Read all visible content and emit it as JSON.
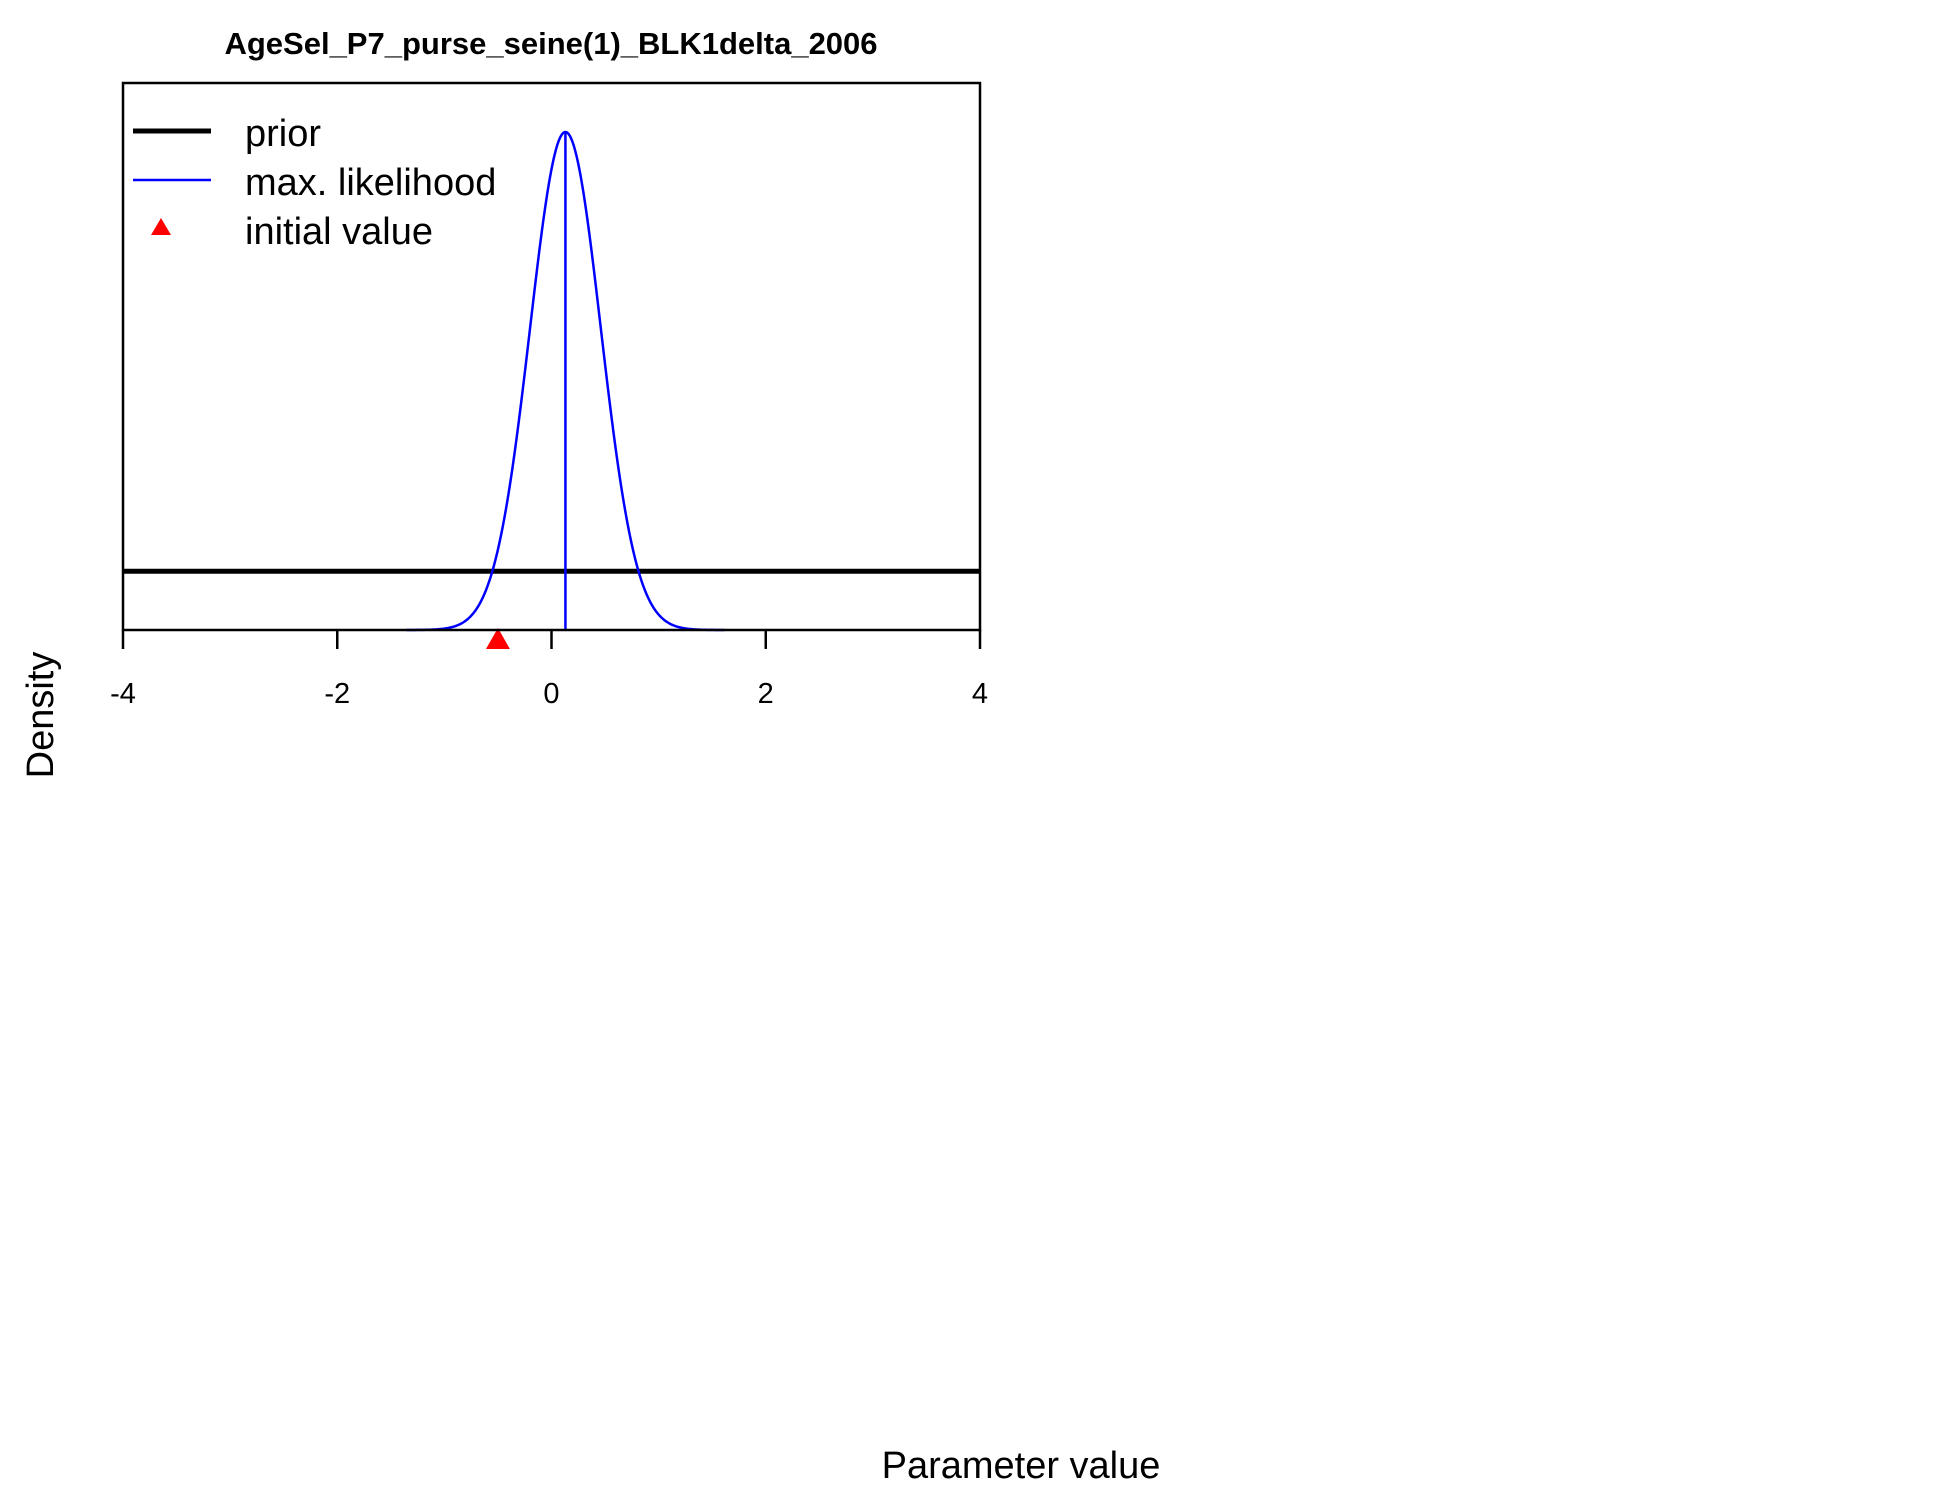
{
  "chart_data": {
    "type": "line",
    "title": "AgeSel_P7_purse_seine(1)_BLK1delta_2006",
    "xlabel": "Parameter value",
    "ylabel": "Density",
    "xlim": [
      -4,
      4
    ],
    "x_ticks": [
      "-4",
      "-2",
      "0",
      "2",
      "4"
    ],
    "y_axis_ticks_shown": false,
    "grid": false,
    "legend_position": "top-left",
    "legend": [
      {
        "label": "prior",
        "symbol": "thick-line",
        "color": "#000000"
      },
      {
        "label": "max. likelihood",
        "symbol": "thin-line",
        "color": "#0000ff"
      },
      {
        "label": "initial value",
        "symbol": "triangle",
        "color": "#ff0000"
      }
    ],
    "series": [
      {
        "name": "prior",
        "kind": "uniform",
        "color": "#000000",
        "relative_density": 0.118
      },
      {
        "name": "max. likelihood",
        "kind": "normal",
        "color": "#0000ff",
        "mean": 0.13,
        "sd": 0.33,
        "mle_marker_x": 0.13
      }
    ],
    "initial_value": {
      "x": -0.5,
      "color": "#ff0000"
    }
  }
}
